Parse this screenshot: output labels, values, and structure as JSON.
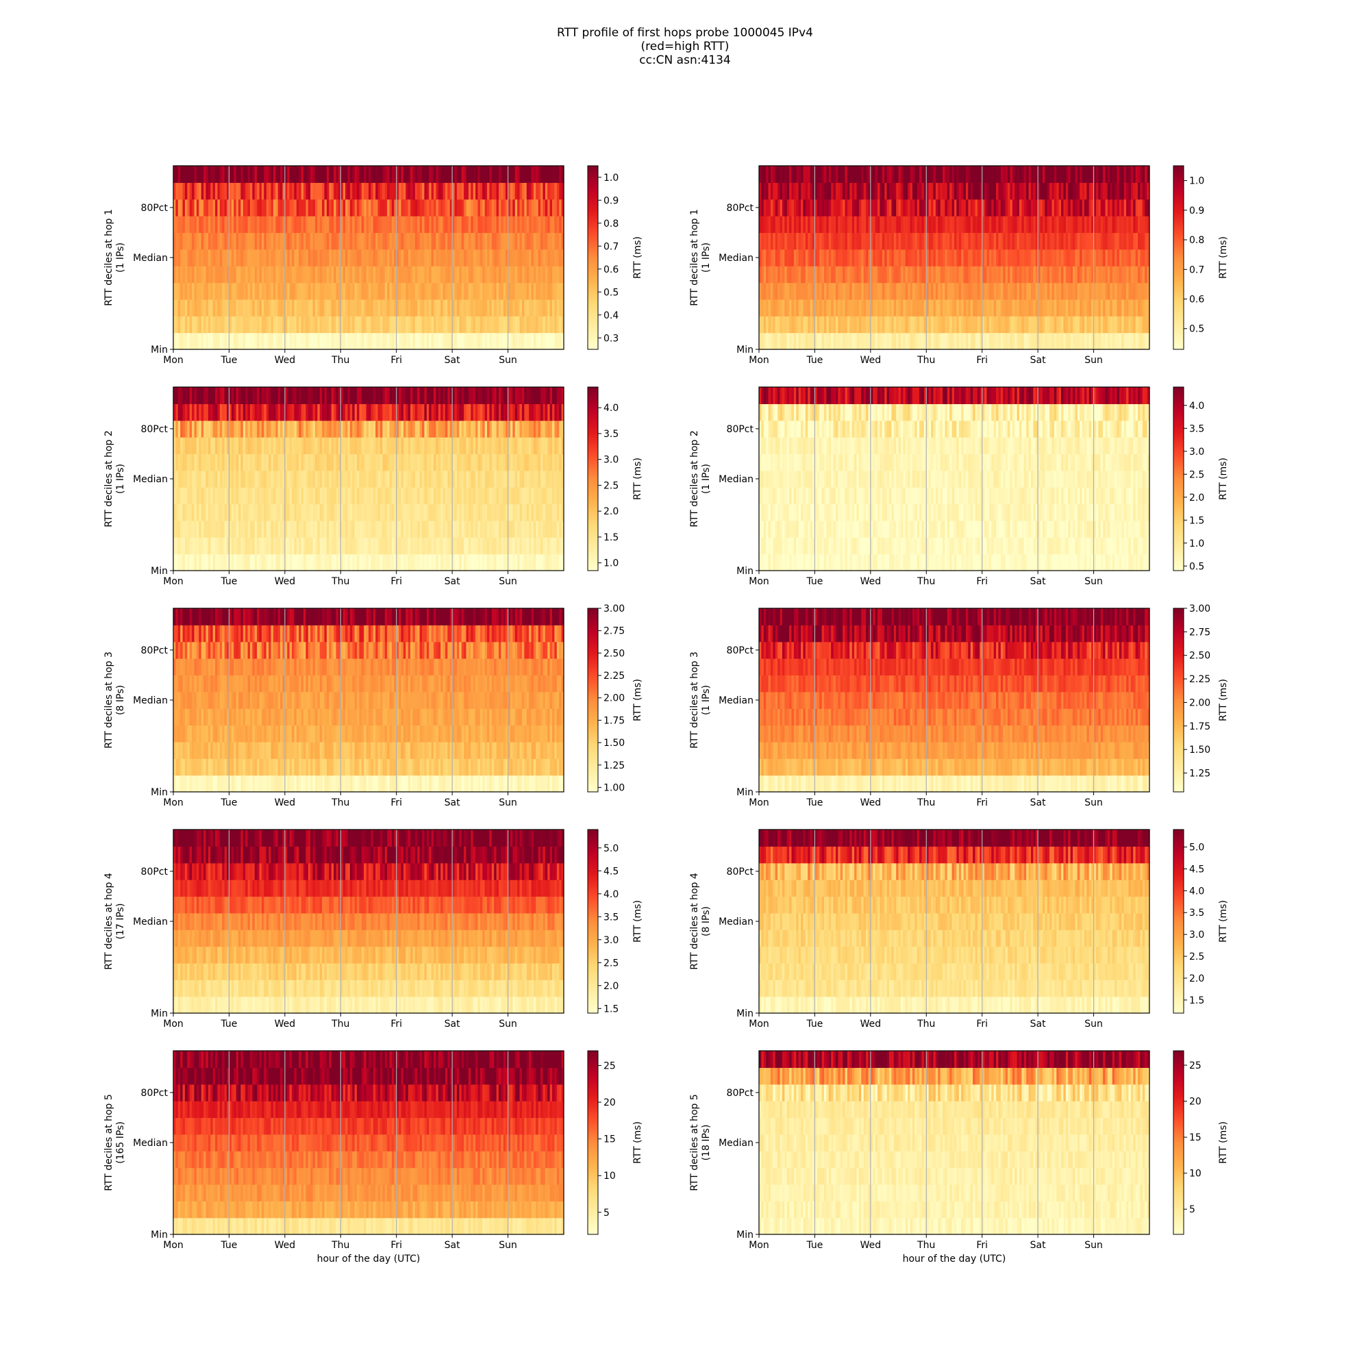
{
  "figure": {
    "title_lines": [
      "RTT profile of first hops probe 1000045 IPv4",
      "(red=high RTT)",
      "cc:CN asn:4134"
    ]
  },
  "days": [
    "Mon",
    "Tue",
    "Wed",
    "Thu",
    "Fri",
    "Sat",
    "Sun"
  ],
  "y_ticks": [
    "Min",
    "Median",
    "80Pct"
  ],
  "xlabel": "hour of the day (UTC)",
  "colorbar_label": "RTT (ms)",
  "colormap": [
    "#ffffcc",
    "#ffeda0",
    "#fed976",
    "#feb24c",
    "#fd8d3c",
    "#fc4e2a",
    "#e31a1c",
    "#bd0026",
    "#800026"
  ],
  "chart_data": [
    {
      "type": "heatmap",
      "hop": 1,
      "panel": "left",
      "ylabel": "RTT deciles at hop 1\n(1 IPs)",
      "vmin": 0.25,
      "vmax": 1.05,
      "cbar_ticks": [
        "0.3",
        "0.4",
        "0.5",
        "0.6",
        "0.7",
        "0.8",
        "0.9",
        "1.0"
      ],
      "decile_rtt_ms": [
        0.28,
        0.47,
        0.52,
        0.56,
        0.6,
        0.63,
        0.66,
        0.7,
        0.75,
        0.82,
        1.05
      ]
    },
    {
      "type": "heatmap",
      "hop": 1,
      "panel": "right",
      "ylabel": "RTT deciles at hop 1\n(1 IPs)",
      "vmin": 0.43,
      "vmax": 1.05,
      "cbar_ticks": [
        "0.5",
        "0.6",
        "0.7",
        "0.8",
        "0.9",
        "1.0"
      ],
      "decile_rtt_ms": [
        0.5,
        0.62,
        0.68,
        0.72,
        0.76,
        0.8,
        0.84,
        0.88,
        0.93,
        0.98,
        1.05
      ]
    },
    {
      "type": "heatmap",
      "hop": 2,
      "panel": "left",
      "ylabel": "RTT deciles at hop 2\n(1 IPs)",
      "vmin": 0.85,
      "vmax": 4.4,
      "cbar_ticks": [
        "1.0",
        "1.5",
        "2.0",
        "2.5",
        "3.0",
        "3.5",
        "4.0"
      ],
      "decile_rtt_ms": [
        1.0,
        1.3,
        1.4,
        1.5,
        1.55,
        1.6,
        1.7,
        1.8,
        2.3,
        3.6,
        4.4
      ]
    },
    {
      "type": "heatmap",
      "hop": 2,
      "panel": "right",
      "ylabel": "RTT deciles at hop 2\n(1 IPs)",
      "vmin": 0.4,
      "vmax": 4.4,
      "cbar_ticks": [
        "0.5",
        "1.0",
        "1.5",
        "2.0",
        "2.5",
        "3.0",
        "3.5",
        "4.0"
      ],
      "decile_rtt_ms": [
        0.5,
        0.55,
        0.6,
        0.62,
        0.65,
        0.68,
        0.7,
        0.72,
        0.75,
        0.85,
        3.8
      ]
    },
    {
      "type": "heatmap",
      "hop": 3,
      "panel": "left",
      "ylabel": "RTT deciles at hop 3\n(8 IPs)",
      "vmin": 0.95,
      "vmax": 3.0,
      "cbar_ticks": [
        "1.00",
        "1.25",
        "1.50",
        "1.75",
        "2.00",
        "2.25",
        "2.50",
        "2.75",
        "3.00"
      ],
      "decile_rtt_ms": [
        1.05,
        1.55,
        1.65,
        1.75,
        1.8,
        1.85,
        1.9,
        1.95,
        2.05,
        2.2,
        3.0
      ]
    },
    {
      "type": "heatmap",
      "hop": 3,
      "panel": "right",
      "ylabel": "RTT deciles at hop 3\n(1 IPs)",
      "vmin": 1.05,
      "vmax": 3.0,
      "cbar_ticks": [
        "1.25",
        "1.50",
        "1.75",
        "2.00",
        "2.25",
        "2.50",
        "2.75",
        "3.00"
      ],
      "decile_rtt_ms": [
        1.2,
        1.75,
        1.9,
        2.0,
        2.1,
        2.15,
        2.25,
        2.35,
        2.5,
        2.8,
        3.0
      ]
    },
    {
      "type": "heatmap",
      "hop": 4,
      "panel": "left",
      "ylabel": "RTT deciles at hop 4\n(17 IPs)",
      "vmin": 1.4,
      "vmax": 5.4,
      "cbar_ticks": [
        "1.5",
        "2.0",
        "2.5",
        "3.0",
        "3.5",
        "4.0",
        "4.5",
        "5.0"
      ],
      "decile_rtt_ms": [
        1.8,
        2.2,
        2.5,
        2.8,
        3.1,
        3.4,
        3.8,
        4.2,
        4.6,
        5.2,
        5.4
      ]
    },
    {
      "type": "heatmap",
      "hop": 4,
      "panel": "right",
      "ylabel": "RTT deciles at hop 4\n(8 IPs)",
      "vmin": 1.2,
      "vmax": 5.4,
      "cbar_ticks": [
        "1.5",
        "2.0",
        "2.5",
        "3.0",
        "3.5",
        "4.0",
        "4.5",
        "5.0"
      ],
      "decile_rtt_ms": [
        1.5,
        1.95,
        2.05,
        2.15,
        2.25,
        2.35,
        2.45,
        2.6,
        2.8,
        4.2,
        5.4
      ]
    },
    {
      "type": "heatmap",
      "hop": 5,
      "panel": "left",
      "ylabel": "RTT deciles at hop 5\n(165 IPs)",
      "vmin": 2.0,
      "vmax": 27.0,
      "cbar_ticks": [
        "5",
        "10",
        "15",
        "20",
        "25"
      ],
      "decile_rtt_ms": [
        6.0,
        12.0,
        13.5,
        14.5,
        15.5,
        17.0,
        18.5,
        20.5,
        23.0,
        27.0,
        27.0
      ]
    },
    {
      "type": "heatmap",
      "hop": 5,
      "panel": "right",
      "ylabel": "RTT deciles at hop 5\n(18 IPs)",
      "vmin": 1.5,
      "vmax": 27.0,
      "cbar_ticks": [
        "5",
        "10",
        "15",
        "20",
        "25"
      ],
      "decile_rtt_ms": [
        3.0,
        3.5,
        3.8,
        4.0,
        4.2,
        4.5,
        4.8,
        5.2,
        6.0,
        12.0,
        25.0
      ]
    }
  ]
}
